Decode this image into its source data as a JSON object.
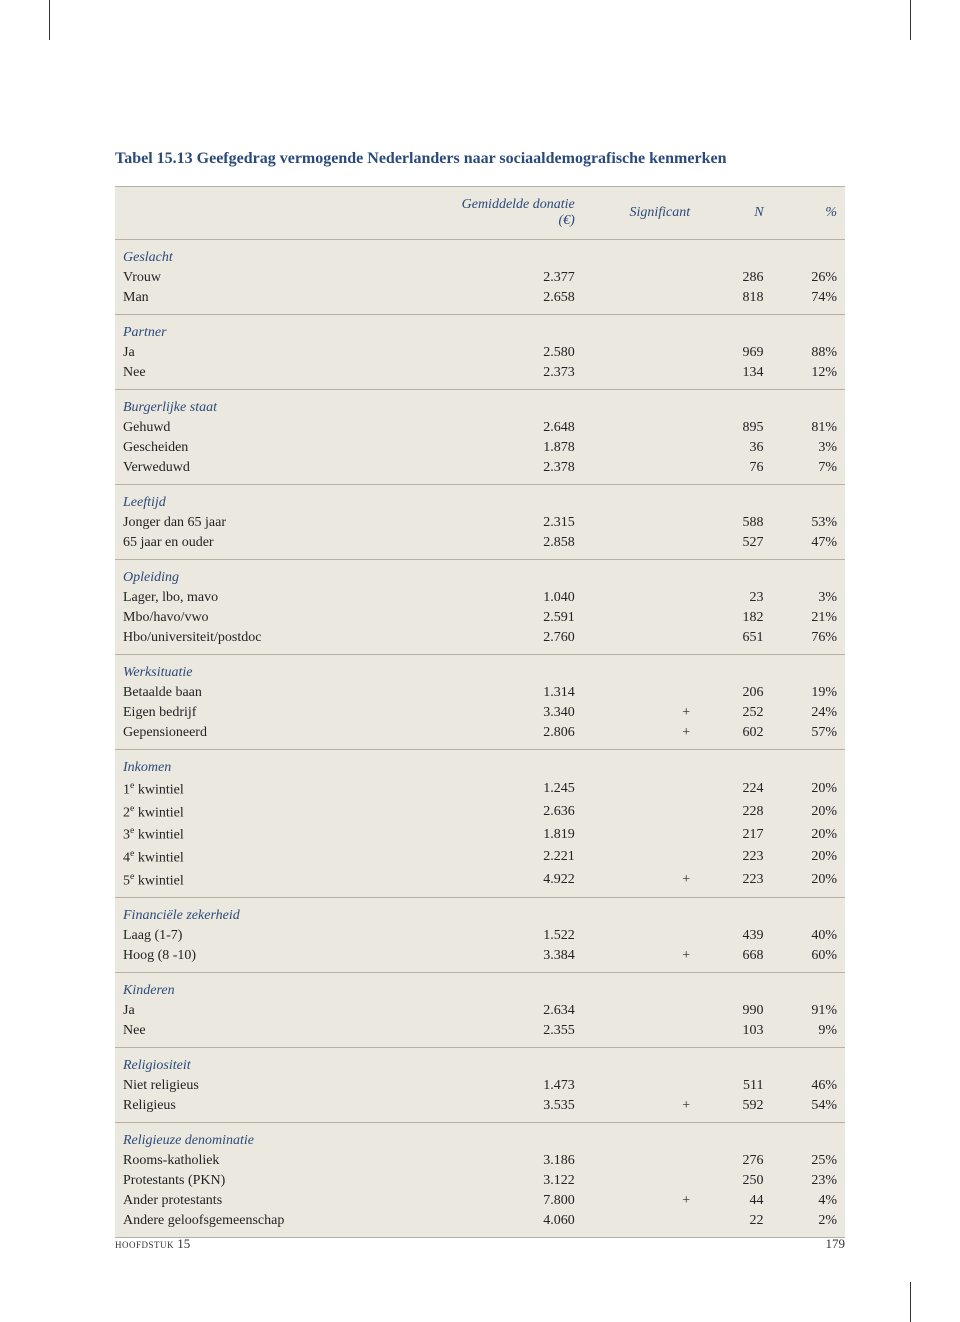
{
  "title": "Tabel 15.13 Geefgedrag vermogende Nederlanders naar sociaaldemografische kenmerken",
  "columns": {
    "donation": "Gemiddelde donatie (€)",
    "significant": "Significant",
    "n": "N",
    "pct": "%"
  },
  "groups": [
    {
      "name": "Geslacht",
      "rows": [
        {
          "label": "Vrouw",
          "donation": "2.377",
          "sig": "",
          "n": "286",
          "pct": "26%"
        },
        {
          "label": "Man",
          "donation": "2.658",
          "sig": "",
          "n": "818",
          "pct": "74%"
        }
      ]
    },
    {
      "name": "Partner",
      "rows": [
        {
          "label": "Ja",
          "donation": "2.580",
          "sig": "",
          "n": "969",
          "pct": "88%"
        },
        {
          "label": "Nee",
          "donation": "2.373",
          "sig": "",
          "n": "134",
          "pct": "12%"
        }
      ]
    },
    {
      "name": "Burgerlijke staat",
      "rows": [
        {
          "label": "Gehuwd",
          "donation": "2.648",
          "sig": "",
          "n": "895",
          "pct": "81%"
        },
        {
          "label": "Gescheiden",
          "donation": "1.878",
          "sig": "",
          "n": "36",
          "pct": "3%"
        },
        {
          "label": "Verweduwd",
          "donation": "2.378",
          "sig": "",
          "n": "76",
          "pct": "7%"
        }
      ]
    },
    {
      "name": "Leeftijd",
      "rows": [
        {
          "label": "Jonger dan 65 jaar",
          "donation": "2.315",
          "sig": "",
          "n": "588",
          "pct": "53%"
        },
        {
          "label": "65 jaar en ouder",
          "donation": "2.858",
          "sig": "",
          "n": "527",
          "pct": "47%"
        }
      ]
    },
    {
      "name": "Opleiding",
      "rows": [
        {
          "label": "Lager, lbo, mavo",
          "donation": "1.040",
          "sig": "",
          "n": "23",
          "pct": "3%"
        },
        {
          "label": "Mbo/havo/vwo",
          "donation": "2.591",
          "sig": "",
          "n": "182",
          "pct": "21%"
        },
        {
          "label": "Hbo/universiteit/postdoc",
          "donation": "2.760",
          "sig": "",
          "n": "651",
          "pct": "76%"
        }
      ]
    },
    {
      "name": "Werksituatie",
      "rows": [
        {
          "label": "Betaalde baan",
          "donation": "1.314",
          "sig": "",
          "n": "206",
          "pct": "19%"
        },
        {
          "label": "Eigen bedrijf",
          "donation": "3.340",
          "sig": "+",
          "n": "252",
          "pct": "24%"
        },
        {
          "label": "Gepensioneerd",
          "donation": "2.806",
          "sig": "+",
          "n": "602",
          "pct": "57%"
        }
      ]
    },
    {
      "name": "Inkomen",
      "rows": [
        {
          "label": "1e kwintiel",
          "sup": true,
          "donation": "1.245",
          "sig": "",
          "n": "224",
          "pct": "20%"
        },
        {
          "label": "2e kwintiel",
          "sup": true,
          "donation": "2.636",
          "sig": "",
          "n": "228",
          "pct": "20%"
        },
        {
          "label": "3e kwintiel",
          "sup": true,
          "donation": "1.819",
          "sig": "",
          "n": "217",
          "pct": "20%"
        },
        {
          "label": "4e kwintiel",
          "sup": true,
          "donation": "2.221",
          "sig": "",
          "n": "223",
          "pct": "20%"
        },
        {
          "label": "5e kwintiel",
          "sup": true,
          "donation": "4.922",
          "sig": "+",
          "n": "223",
          "pct": "20%"
        }
      ]
    },
    {
      "name": "Financiële zekerheid",
      "rows": [
        {
          "label": "Laag (1-7)",
          "donation": "1.522",
          "sig": "",
          "n": "439",
          "pct": "40%"
        },
        {
          "label": "Hoog (8 -10)",
          "donation": "3.384",
          "sig": "+",
          "n": "668",
          "pct": "60%"
        }
      ]
    },
    {
      "name": "Kinderen",
      "rows": [
        {
          "label": "Ja",
          "donation": "2.634",
          "sig": "",
          "n": "990",
          "pct": "91%"
        },
        {
          "label": "Nee",
          "donation": "2.355",
          "sig": "",
          "n": "103",
          "pct": "9%"
        }
      ]
    },
    {
      "name": "Religiositeit",
      "rows": [
        {
          "label": "Niet religieus",
          "donation": "1.473",
          "sig": "",
          "n": "511",
          "pct": "46%"
        },
        {
          "label": "Religieus",
          "donation": "3.535",
          "sig": "+",
          "n": "592",
          "pct": "54%"
        }
      ]
    },
    {
      "name": "Religieuze denominatie",
      "rows": [
        {
          "label": "Rooms-katholiek",
          "donation": "3.186",
          "sig": "",
          "n": "276",
          "pct": "25%"
        },
        {
          "label": "Protestants (PKN)",
          "donation": "3.122",
          "sig": "",
          "n": "250",
          "pct": "23%"
        },
        {
          "label": "Ander protestants",
          "donation": "7.800",
          "sig": "+",
          "n": "44",
          "pct": "4%"
        },
        {
          "label": "Andere geloofsgemeenschap",
          "donation": "4.060",
          "sig": "",
          "n": "22",
          "pct": "2%"
        }
      ]
    }
  ],
  "footer": {
    "chapter_label": "hoofdstuk",
    "chapter_num": "15",
    "page": "179"
  },
  "colors": {
    "heading": "#2b4a7a",
    "table_bg": "#ebe8df",
    "rule": "#b5b0a2",
    "text": "#222222",
    "page_bg": "#ffffff"
  }
}
